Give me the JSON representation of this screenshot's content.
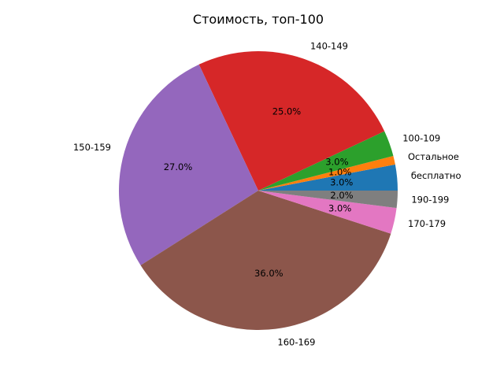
{
  "chart_data": {
    "type": "pie",
    "title": "Стоимость, топ-100",
    "start_angle_deg": 0,
    "direction": "counterclockwise",
    "slices": [
      {
        "label": "бесплатно",
        "value": 3.0,
        "pct_text": "3.0%",
        "color": "#1f77b4"
      },
      {
        "label": "Остальное",
        "value": 1.0,
        "pct_text": "1.0%",
        "color": "#ff7f0e"
      },
      {
        "label": "100-109",
        "value": 3.0,
        "pct_text": "3.0%",
        "color": "#2ca02c"
      },
      {
        "label": "140-149",
        "value": 25.0,
        "pct_text": "25.0%",
        "color": "#d62728"
      },
      {
        "label": "150-159",
        "value": 27.0,
        "pct_text": "27.0%",
        "color": "#9467bd"
      },
      {
        "label": "160-169",
        "value": 36.0,
        "pct_text": "36.0%",
        "color": "#8c564b"
      },
      {
        "label": "170-179",
        "value": 3.0,
        "pct_text": "3.0%",
        "color": "#e377c2"
      },
      {
        "label": "190-199",
        "value": 2.0,
        "pct_text": "2.0%",
        "color": "#7f7f7f"
      }
    ]
  }
}
